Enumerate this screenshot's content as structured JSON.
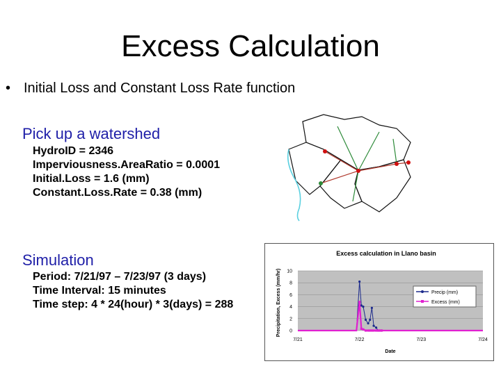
{
  "slide": {
    "title": "Excess Calculation",
    "bullet": "Initial Loss and Constant Loss Rate function",
    "bullet_mark": "•"
  },
  "watershed": {
    "heading": "Pick up a watershed",
    "lines": [
      "HydroID = 2346",
      "Imperviousness.AreaRatio = 0.0001",
      "Initial.Loss  = 1.6 (mm)",
      "Constant.Loss.Rate = 0.38 (mm)"
    ]
  },
  "simulation": {
    "heading": "Simulation",
    "lines": [
      "Period: 7/21/97 – 7/23/97 (3 days)",
      "Time Interval: 15 minutes",
      "Time step: 4 * 24(hour) * 3(days) = 288"
    ]
  },
  "chart_data": {
    "type": "line",
    "title": "Excess calculation in Llano basin",
    "xlabel": "Date",
    "ylabel": "Precipitation, Excess (mm/hr)",
    "ylim": [
      0,
      10
    ],
    "yticks": [
      "0",
      "2",
      "4",
      "6",
      "8",
      "10"
    ],
    "xticks": [
      "7/21",
      "7/22",
      "7/23",
      "7/24"
    ],
    "xlim": [
      0,
      3
    ],
    "legend_position": "right",
    "series": [
      {
        "name": "Precip (mm)",
        "color": "#1c2a8c",
        "x": [
          0,
          0.95,
          1.0,
          1.03,
          1.06,
          1.1,
          1.14,
          1.17,
          1.2,
          1.23,
          1.27,
          1.3,
          1.33,
          1.36,
          1.4,
          3
        ],
        "y": [
          0,
          0,
          8.2,
          4.2,
          4,
          1.8,
          1.2,
          1.8,
          3.8,
          0.8,
          0.5,
          0,
          0,
          0,
          0,
          0
        ]
      },
      {
        "name": "Excess (mm)",
        "color": "#e020d0",
        "x": [
          0,
          0.95,
          1.0,
          1.03,
          1.06,
          1.1,
          1.14,
          1.17,
          1.2,
          1.23,
          1.27,
          1.3,
          1.33,
          1.36,
          1.4,
          3
        ],
        "y": [
          0,
          0,
          4.8,
          0.3,
          0.2,
          0,
          0,
          0,
          0,
          0,
          0,
          0,
          0,
          0,
          0,
          0
        ]
      }
    ]
  }
}
